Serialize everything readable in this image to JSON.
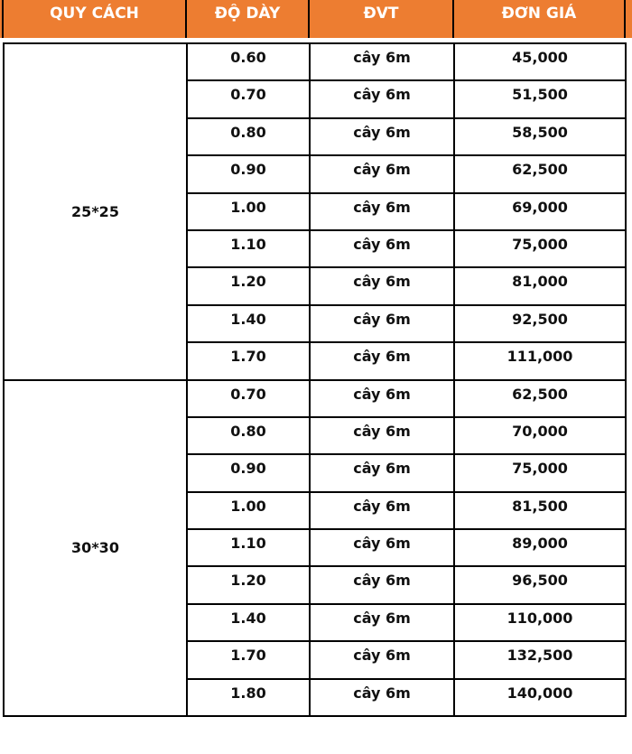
{
  "colors": {
    "header_bg": "#ED7D31",
    "header_text": "#FFFFFF"
  },
  "headers": [
    "QUY CÁCH",
    "ĐỘ DÀY",
    "ĐVT",
    "ĐƠN GIÁ"
  ],
  "groups": [
    {
      "spec": "25*25",
      "rows": [
        [
          "0.60",
          "cây 6m",
          "45,000"
        ],
        [
          "0.70",
          "cây 6m",
          "51,500"
        ],
        [
          "0.80",
          "cây 6m",
          "58,500"
        ],
        [
          "0.90",
          "cây 6m",
          "62,500"
        ],
        [
          "1.00",
          "cây 6m",
          "69,000"
        ],
        [
          "1.10",
          "cây 6m",
          "75,000"
        ],
        [
          "1.20",
          "cây 6m",
          "81,000"
        ],
        [
          "1.40",
          "cây 6m",
          "92,500"
        ],
        [
          "1.70",
          "cây 6m",
          "111,000"
        ]
      ]
    },
    {
      "spec": "30*30",
      "rows": [
        [
          "0.70",
          "cây 6m",
          "62,500"
        ],
        [
          "0.80",
          "cây 6m",
          "70,000"
        ],
        [
          "0.90",
          "cây 6m",
          "75,000"
        ],
        [
          "1.00",
          "cây 6m",
          "81,500"
        ],
        [
          "1.10",
          "cây 6m",
          "89,000"
        ],
        [
          "1.20",
          "cây 6m",
          "96,500"
        ],
        [
          "1.40",
          "cây 6m",
          "110,000"
        ],
        [
          "1.70",
          "cây 6m",
          "132,500"
        ],
        [
          "1.80",
          "cây 6m",
          "140,000"
        ]
      ]
    }
  ]
}
